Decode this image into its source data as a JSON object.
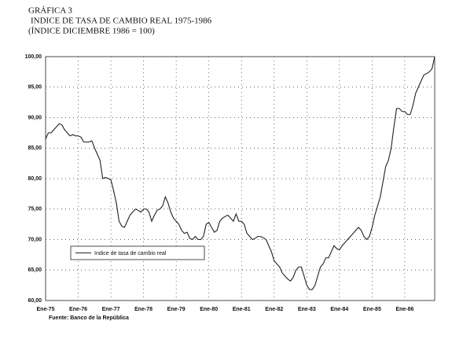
{
  "chart_data": {
    "type": "line",
    "title": "GRÁFICA 3",
    "subtitles": [
      "INDICE DE TASA DE CAMBIO REAL 1975-1986",
      "(ÍNDICE DICIEMBRE 1986 = 100)"
    ],
    "source": "Fuente: Banco de la República",
    "categories": [
      "Ene-75",
      null,
      null,
      null,
      null,
      null,
      null,
      null,
      null,
      null,
      null,
      null,
      "Ene-76",
      null,
      null,
      null,
      null,
      null,
      null,
      null,
      null,
      null,
      null,
      null,
      "Ene-77",
      null,
      null,
      null,
      null,
      null,
      null,
      null,
      null,
      null,
      null,
      null,
      "Ene-78",
      null,
      null,
      null,
      null,
      null,
      null,
      null,
      null,
      null,
      null,
      null,
      "Ene-79",
      null,
      null,
      null,
      null,
      null,
      null,
      null,
      null,
      null,
      null,
      null,
      "Ene-80",
      null,
      null,
      null,
      null,
      null,
      null,
      null,
      null,
      null,
      null,
      null,
      "Ene-81",
      null,
      null,
      null,
      null,
      null,
      null,
      null,
      null,
      null,
      null,
      null,
      "Ene-82",
      null,
      null,
      null,
      null,
      null,
      null,
      null,
      null,
      null,
      null,
      null,
      "Ene-83",
      null,
      null,
      null,
      null,
      null,
      null,
      null,
      null,
      null,
      null,
      null,
      "Ene-84",
      null,
      null,
      null,
      null,
      null,
      null,
      null,
      null,
      null,
      null,
      null,
      "Ene-85",
      null,
      null,
      null,
      null,
      null,
      null,
      null,
      null,
      null,
      null,
      null,
      "Ene-86",
      null,
      null,
      null,
      null,
      null,
      null,
      null,
      null,
      null,
      null,
      null
    ],
    "series": [
      {
        "name": "Indice de tasa de cambio real",
        "color": "#222222",
        "values": [
          86.5,
          87.5,
          87.5,
          88,
          88.5,
          89,
          88.8,
          88,
          87.5,
          87,
          87.2,
          87,
          87,
          86.8,
          86,
          86,
          86,
          86.2,
          85,
          84,
          83,
          80,
          80.2,
          80,
          79.8,
          78,
          76,
          73,
          72.2,
          72,
          73,
          74,
          74.5,
          75,
          74.8,
          74.5,
          75,
          75,
          74.5,
          73,
          74,
          74.8,
          75,
          75.5,
          77,
          76,
          74.5,
          73.5,
          73,
          72.5,
          71.5,
          71,
          71.2,
          70.2,
          70,
          70.5,
          70,
          70,
          70.5,
          72.5,
          72.8,
          72,
          71.2,
          71.5,
          73,
          73.5,
          73.8,
          74,
          73.5,
          73,
          74.2,
          73,
          73,
          72.5,
          71,
          70.5,
          70,
          70.2,
          70.5,
          70.5,
          70.3,
          70,
          69,
          68,
          66.5,
          66,
          65.5,
          64.5,
          64,
          63.5,
          63.2,
          63.8,
          65,
          65.5,
          65.5,
          64,
          62.5,
          61.8,
          61.8,
          62.5,
          64,
          65.5,
          66,
          67,
          67,
          68,
          69,
          68.5,
          68.3,
          69,
          69.5,
          70,
          70.5,
          71,
          71.5,
          72,
          71.5,
          70.5,
          70,
          70.5,
          72,
          74,
          75.5,
          77,
          79.5,
          82,
          83,
          85,
          88.5,
          91.5,
          91.5,
          91,
          91,
          90.5,
          90.5,
          92,
          94,
          95,
          96,
          97,
          97.2,
          97.5,
          98,
          100
        ]
      }
    ],
    "ylim": [
      60,
      100
    ],
    "yticks": [
      {
        "value": 60,
        "label": "60,00"
      },
      {
        "value": 65,
        "label": "65,00"
      },
      {
        "value": 70,
        "label": "70,00"
      },
      {
        "value": 75,
        "label": "75,00"
      },
      {
        "value": 80,
        "label": "80,00"
      },
      {
        "value": 85,
        "label": "85,00"
      },
      {
        "value": 90,
        "label": "90,00"
      },
      {
        "value": 95,
        "label": "95,00"
      },
      {
        "value": 100,
        "label": "100,00"
      }
    ],
    "grid": true
  }
}
